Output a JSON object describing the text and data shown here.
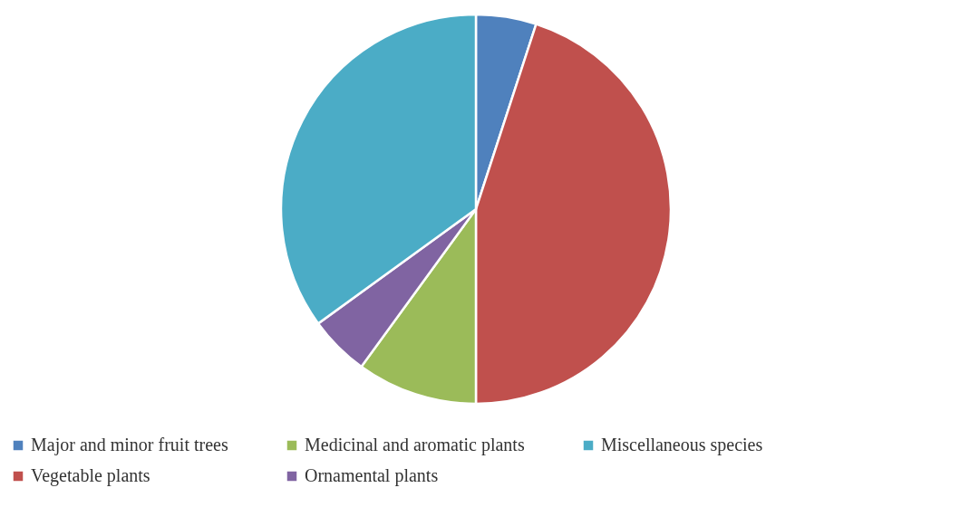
{
  "chart_data": {
    "type": "pie",
    "categories": [
      "Major and minor fruit trees",
      "Vegetable plants",
      "Medicinal and aromatic plants",
      "Ornamental plants",
      "Miscellaneous species"
    ],
    "values": [
      5,
      45,
      10,
      5,
      35
    ],
    "colors": [
      "#4f81bd",
      "#c0504d",
      "#9bbb59",
      "#8064a2",
      "#4bacc6"
    ],
    "legend": "bottom"
  }
}
